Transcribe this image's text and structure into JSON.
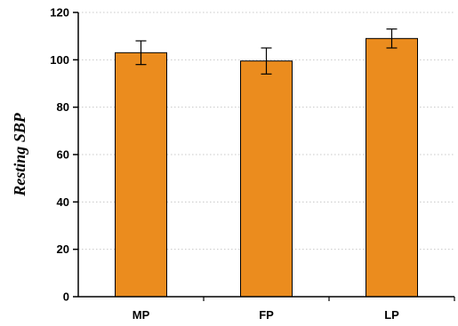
{
  "chart_data": {
    "type": "bar",
    "title": "",
    "xlabel": "",
    "ylabel": "Resting SBP",
    "categories": [
      "MP",
      "FP",
      "LP"
    ],
    "values": [
      103,
      99.5,
      109
    ],
    "error_bars": [
      5,
      5.5,
      4
    ],
    "ylim": [
      0,
      120
    ],
    "yticks": [
      0,
      20,
      40,
      60,
      80,
      100,
      120
    ],
    "grid": true,
    "legend": "none",
    "bar_color": "#EB8C1E",
    "bar_outline_color": "#000000",
    "grid_color": "#c8c8c8"
  }
}
